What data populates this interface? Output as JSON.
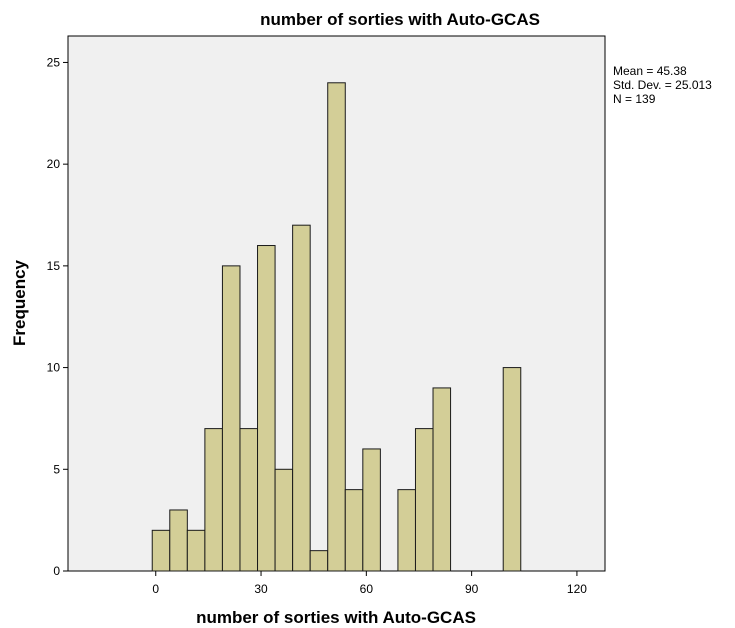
{
  "chart_data": {
    "type": "bar",
    "title": "number of sorties with Auto-GCAS",
    "xlabel": "number of sorties with Auto-GCAS",
    "ylabel": "Frequency",
    "xlim": [
      -25,
      128
    ],
    "ylim": [
      0,
      26.3
    ],
    "x_ticks": [
      0,
      30,
      60,
      90,
      120
    ],
    "y_ticks": [
      0,
      5,
      10,
      15,
      20,
      25
    ],
    "bin_width": 5,
    "bins": [
      {
        "start": -1,
        "value": 2
      },
      {
        "start": 4,
        "value": 3
      },
      {
        "start": 9,
        "value": 2
      },
      {
        "start": 14,
        "value": 7
      },
      {
        "start": 19,
        "value": 15
      },
      {
        "start": 24,
        "value": 7
      },
      {
        "start": 29,
        "value": 16
      },
      {
        "start": 34,
        "value": 5
      },
      {
        "start": 39,
        "value": 17
      },
      {
        "start": 44,
        "value": 1
      },
      {
        "start": 49,
        "value": 24
      },
      {
        "start": 54,
        "value": 4
      },
      {
        "start": 59,
        "value": 6
      },
      {
        "start": 69,
        "value": 4
      },
      {
        "start": 74,
        "value": 7
      },
      {
        "start": 79,
        "value": 9
      },
      {
        "start": 99,
        "value": 10
      }
    ],
    "plot_background": "#f0f0f0",
    "bar_color": "#d3ce97",
    "grid": false,
    "statistics": {
      "mean": "Mean = 45.38",
      "std_dev": "Std. Dev. = 25.013",
      "n": "N = 139"
    }
  }
}
